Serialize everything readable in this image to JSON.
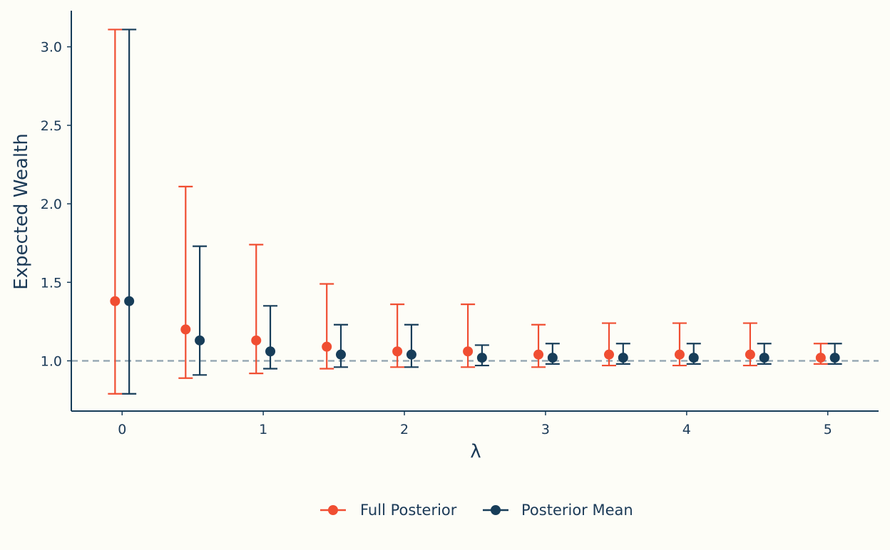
{
  "chart_data": {
    "type": "scatter",
    "title": "",
    "xlabel": "λ",
    "ylabel": "Expected Wealth",
    "xlim": [
      -0.36,
      5.36
    ],
    "ylim": [
      0.68,
      3.23
    ],
    "x_ticks": [
      "0",
      "1",
      "2",
      "3",
      "4",
      "5"
    ],
    "y_ticks": [
      "1.0",
      "1.5",
      "2.0",
      "2.5",
      "3.0"
    ],
    "reference_line": {
      "y": 1.0,
      "style": "dashed"
    },
    "grid": false,
    "legend_position": "bottom-center",
    "colors": {
      "full": "#f04e32",
      "mean": "#173d59",
      "reference": "#8fa3b0"
    },
    "series": [
      {
        "name": "Full Posterior",
        "x": [
          0,
          0.5,
          1,
          1.5,
          2,
          2.5,
          3,
          3.5,
          4,
          4.5,
          5
        ],
        "y": [
          1.38,
          1.2,
          1.13,
          1.09,
          1.06,
          1.06,
          1.04,
          1.04,
          1.04,
          1.04,
          1.02
        ],
        "lower": [
          0.79,
          0.89,
          0.92,
          0.95,
          0.96,
          0.96,
          0.96,
          0.97,
          0.97,
          0.97,
          0.98
        ],
        "upper": [
          3.11,
          2.11,
          1.74,
          1.49,
          1.36,
          1.36,
          1.23,
          1.24,
          1.24,
          1.24,
          1.11
        ]
      },
      {
        "name": "Posterior Mean",
        "x": [
          0,
          0.5,
          1,
          1.5,
          2,
          2.5,
          3,
          3.5,
          4,
          4.5,
          5
        ],
        "y": [
          1.38,
          1.13,
          1.06,
          1.04,
          1.04,
          1.02,
          1.02,
          1.02,
          1.02,
          1.02,
          1.02
        ],
        "lower": [
          0.79,
          0.91,
          0.95,
          0.96,
          0.96,
          0.97,
          0.98,
          0.98,
          0.98,
          0.98,
          0.98
        ],
        "upper": [
          3.11,
          1.73,
          1.35,
          1.23,
          1.23,
          1.1,
          1.11,
          1.11,
          1.11,
          1.11,
          1.11
        ]
      }
    ]
  }
}
